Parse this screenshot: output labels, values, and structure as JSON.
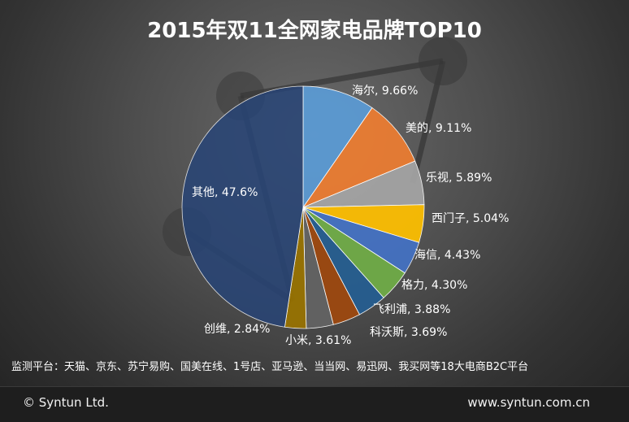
{
  "colors": {
    "haier": "#5b9bd5",
    "midea": "#ed7d31",
    "letv": "#a5a5a5",
    "siemens": "#ffc000",
    "hisense": "#4472c4",
    "gree": "#70ad47",
    "philips": "#255e91",
    "whirlpool": "#9e480e",
    "xiaomi": "#636363",
    "skyworth": "#997300",
    "others": "#264478"
  },
  "chart_data": {
    "type": "pie",
    "title": "2015年双11全网家电品牌TOP10",
    "slices": [
      {
        "label": "海尔",
        "value": 9.66,
        "display": "海尔, 9.66%",
        "color": "#5b9bd5"
      },
      {
        "label": "美的",
        "value": 9.11,
        "display": "美的, 9.11%",
        "color": "#ed7d31"
      },
      {
        "label": "乐视",
        "value": 5.89,
        "display": "乐视, 5.89%",
        "color": "#a5a5a5"
      },
      {
        "label": "西门子",
        "value": 5.04,
        "display": "西门子, 5.04%",
        "color": "#ffc000"
      },
      {
        "label": "海信",
        "value": 4.43,
        "display": "海信, 4.43%",
        "color": "#4472c4"
      },
      {
        "label": "格力",
        "value": 4.3,
        "display": "格力, 4.30%",
        "color": "#70ad47"
      },
      {
        "label": "飞利浦",
        "value": 3.88,
        "display": "飞利浦, 3.88%",
        "color": "#255e91"
      },
      {
        "label": "科沃斯",
        "value": 3.69,
        "display": "科沃斯, 3.69%",
        "color": "#9e480e"
      },
      {
        "label": "小米",
        "value": 3.61,
        "display": "小米, 3.61%",
        "color": "#636363"
      },
      {
        "label": "创维",
        "value": 2.84,
        "display": "创维, 2.84%",
        "color": "#997300"
      },
      {
        "label": "其他",
        "value": 47.6,
        "display": "其他, 47.6%",
        "color": "#264478"
      }
    ]
  },
  "source_note": "监测平台：天猫、京东、苏宁易购、国美在线、1号店、亚马逊、当当网、易迅网、我买网等18大电商B2C平台",
  "footer": {
    "copyright": "© Syntun Ltd.",
    "website": "www.syntun.com.cn"
  }
}
